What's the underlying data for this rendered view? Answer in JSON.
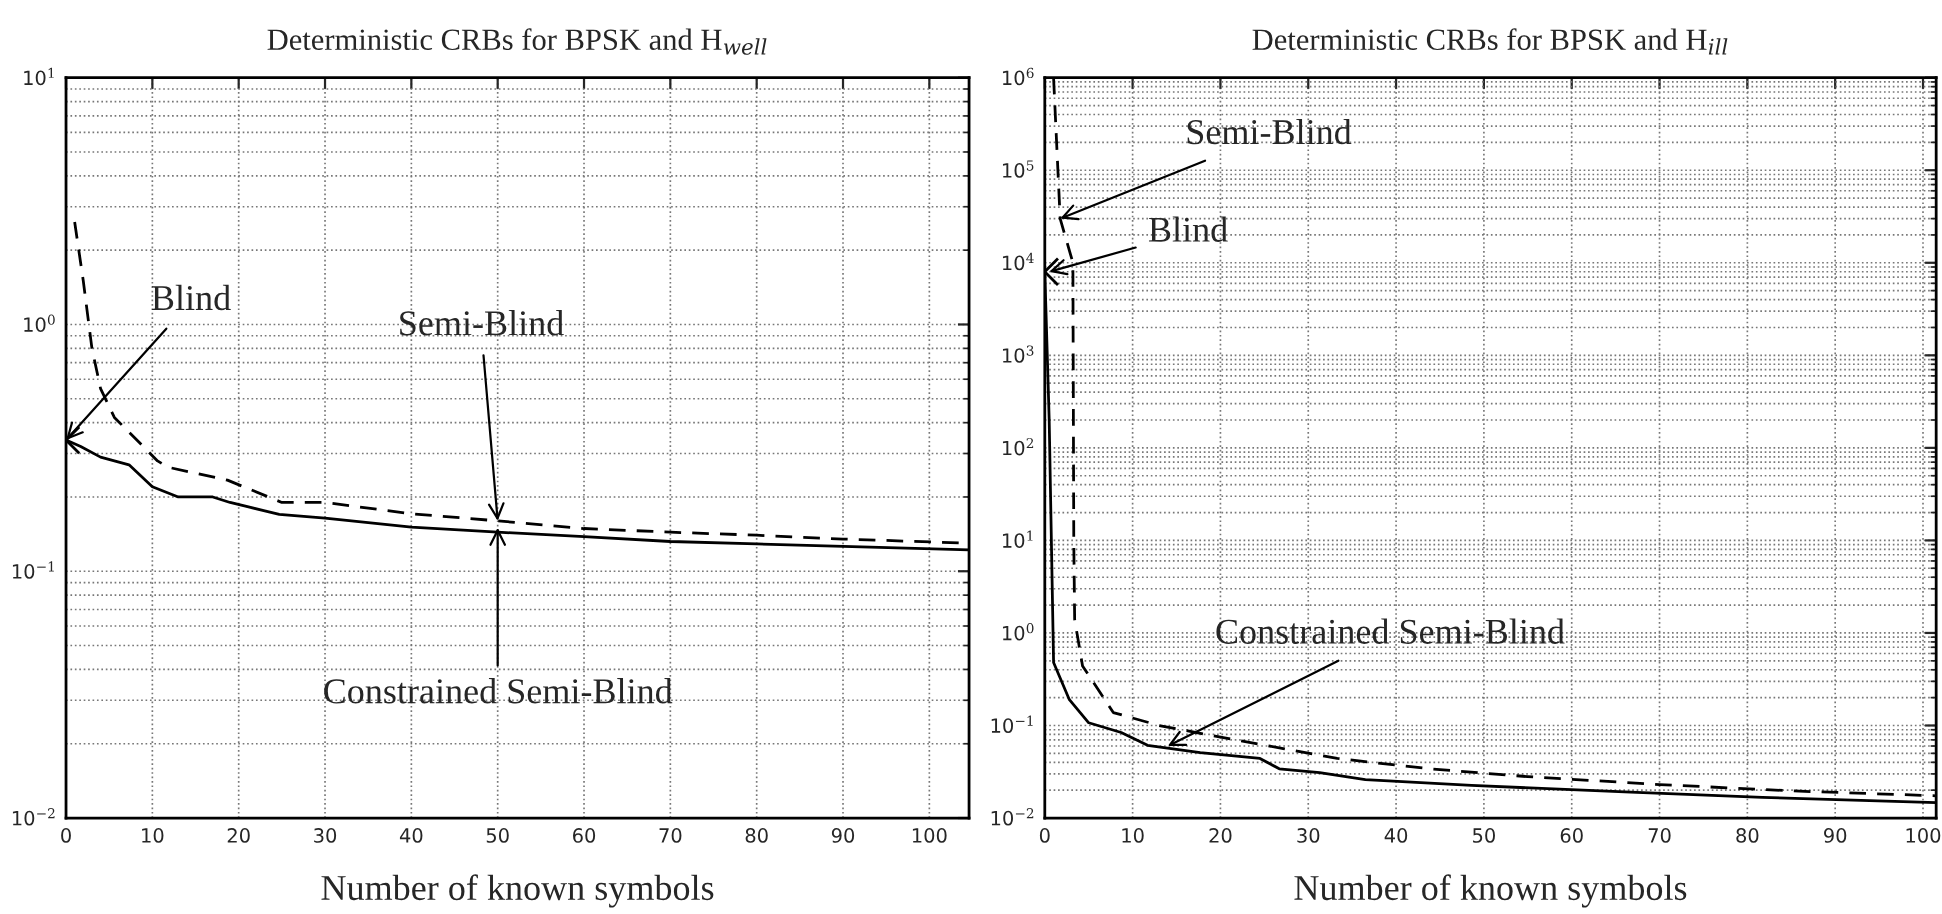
{
  "chart_data": [
    {
      "type": "line",
      "title": "Deterministic CRBs for BPSK and H$_{well}$",
      "xlabel": "Number of known symbols",
      "log": true,
      "grid": true,
      "legend": false,
      "xlim": [
        0,
        104.6
      ],
      "xticks": [
        0,
        10,
        20,
        30,
        40,
        50,
        60,
        70,
        80,
        90,
        100
      ],
      "ylim": [
        0.01,
        10
      ],
      "yticks": [
        {
          "value": 0.01,
          "label": "10$^{−2}$"
        },
        {
          "value": 0.1,
          "label": "10$^{−1}$"
        },
        {
          "value": 1,
          "label": "10$^{0}$"
        },
        {
          "value": 10,
          "label": "10$^{1}$"
        }
      ],
      "series": [
        {
          "type": "scatter",
          "marker": "cross",
          "color": "#000000",
          "x": [
            0
          ],
          "values": [
            0.34
          ]
        },
        {
          "type": "line",
          "line_style": "dashed",
          "color": "#000000",
          "x": [
            1,
            2,
            3,
            4,
            5.6,
            10.6,
            11.8,
            18.7,
            25,
            30,
            40,
            50,
            60,
            70,
            80,
            90,
            104.6
          ],
          "values": [
            2.6,
            1.5,
            0.8,
            0.55,
            0.42,
            0.28,
            0.264,
            0.234,
            0.19,
            0.19,
            0.171,
            0.16,
            0.149,
            0.144,
            0.14,
            0.135,
            0.13
          ]
        },
        {
          "type": "line",
          "line_style": "solid",
          "color": "#000000",
          "x": [
            0,
            1.7,
            4,
            7.3,
            10,
            13,
            17,
            19,
            24.7,
            30,
            40,
            50,
            60,
            70,
            80,
            90,
            104.6
          ],
          "values": [
            0.34,
            0.32,
            0.29,
            0.27,
            0.22,
            0.2,
            0.2,
            0.19,
            0.17,
            0.164,
            0.151,
            0.144,
            0.138,
            0.132,
            0.129,
            0.126,
            0.122
          ]
        }
      ],
      "annotations": [
        {
          "text": "Blind",
          "x": 0,
          "y": 0.34
        },
        {
          "text": "Semi-Blind",
          "x": 50,
          "y": 0.16
        },
        {
          "text": "Constrained Semi-Blind",
          "x": 50,
          "y": 0.15
        }
      ]
    },
    {
      "type": "line",
      "title": "Deterministic CRBs for BPSK and H$_{ill}$",
      "xlabel": "Number of known symbols",
      "log": true,
      "grid": true,
      "legend": false,
      "xlim": [
        0,
        101.5
      ],
      "xticks": [
        0,
        10,
        20,
        30,
        40,
        50,
        60,
        70,
        80,
        90,
        100
      ],
      "ylim": [
        0.01,
        1000000
      ],
      "yticks": [
        {
          "value": 0.01,
          "label": "10$^{−2}$"
        },
        {
          "value": 0.1,
          "label": "10$^{−1}$"
        },
        {
          "value": 1,
          "label": "10$^{0}$"
        },
        {
          "value": 10,
          "label": "10$^{1}$"
        },
        {
          "value": 100,
          "label": "10$^{2}$"
        },
        {
          "value": 1000,
          "label": "10$^{3}$"
        },
        {
          "value": 10000,
          "label": "10$^{4}$"
        },
        {
          "value": 100000,
          "label": "10$^{5}$"
        },
        {
          "value": 1000000,
          "label": "10$^{6}$"
        }
      ],
      "series": [
        {
          "type": "scatter",
          "marker": "cross",
          "color": "#000000",
          "x": [
            0
          ],
          "values": [
            8000
          ]
        },
        {
          "type": "line",
          "line_style": "dashed",
          "color": "#000000",
          "x": [
            1,
            1.75,
            3.2,
            3.3,
            3.4,
            4.3,
            7.8,
            13,
            21.3,
            27.3,
            33.3,
            43.9,
            55,
            70,
            85.3,
            101.5
          ],
          "values": [
            1000000,
            30000,
            10000,
            10,
            1.4,
            0.44,
            0.138,
            0.1,
            0.071,
            0.056,
            0.044,
            0.034,
            0.028,
            0.023,
            0.0196,
            0.0174
          ]
        },
        {
          "type": "line",
          "line_style": "solid",
          "color": "#000000",
          "x": [
            0,
            0.5,
            1,
            2.8,
            5,
            8.7,
            11.7,
            17.7,
            24.5,
            26.7,
            31.3,
            36.5,
            48.6,
            66.7,
            81.7,
            101.5
          ],
          "values": [
            8000,
            200,
            0.48,
            0.19,
            0.107,
            0.084,
            0.061,
            0.051,
            0.044,
            0.034,
            0.031,
            0.026,
            0.0225,
            0.019,
            0.0167,
            0.0147
          ]
        }
      ],
      "annotations": [
        {
          "text": "Semi-Blind",
          "x": 1.75,
          "y": 30000
        },
        {
          "text": "Blind",
          "x": 0.5,
          "y": 8000
        },
        {
          "text": "Constrained Semi-Blind",
          "x": 14,
          "y": 0.06
        }
      ]
    }
  ]
}
